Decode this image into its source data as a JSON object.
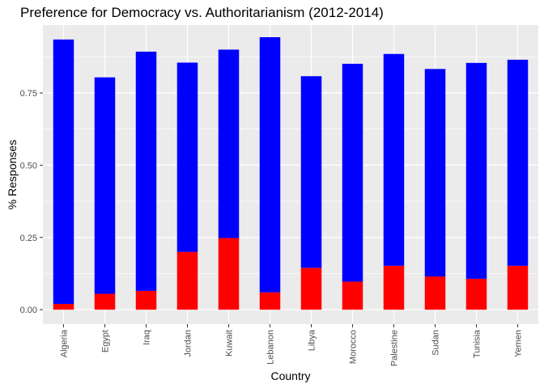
{
  "chart_data": {
    "type": "bar",
    "stacked": true,
    "title": "Preference for Democracy vs. Authoritarianism (2012-2014)",
    "xlabel": "Country",
    "ylabel": "% Responses",
    "categories": [
      "Algeria",
      "Egypt",
      "Iraq",
      "Jordan",
      "Kuwait",
      "Lebanon",
      "Libya",
      "Morocco",
      "Palestine",
      "Sudan",
      "Tunisia",
      "Yemen"
    ],
    "series": [
      {
        "color": "#ff0000",
        "values": [
          0.02,
          0.055,
          0.065,
          0.2,
          0.248,
          0.06,
          0.145,
          0.097,
          0.152,
          0.115,
          0.107,
          0.152
        ]
      },
      {
        "color": "#0000ff",
        "values": [
          0.915,
          0.749,
          0.828,
          0.655,
          0.652,
          0.883,
          0.663,
          0.754,
          0.733,
          0.718,
          0.747,
          0.713
        ]
      }
    ],
    "ylim": [
      -0.05,
      0.985
    ],
    "yticks": [
      0.0,
      0.25,
      0.5,
      0.75
    ],
    "ytick_labels": [
      "0.00",
      "0.25",
      "0.50",
      "0.75"
    ],
    "grid": true,
    "panel_background": "#ebebeb",
    "grid_color": "#ffffff",
    "legend": "none"
  }
}
